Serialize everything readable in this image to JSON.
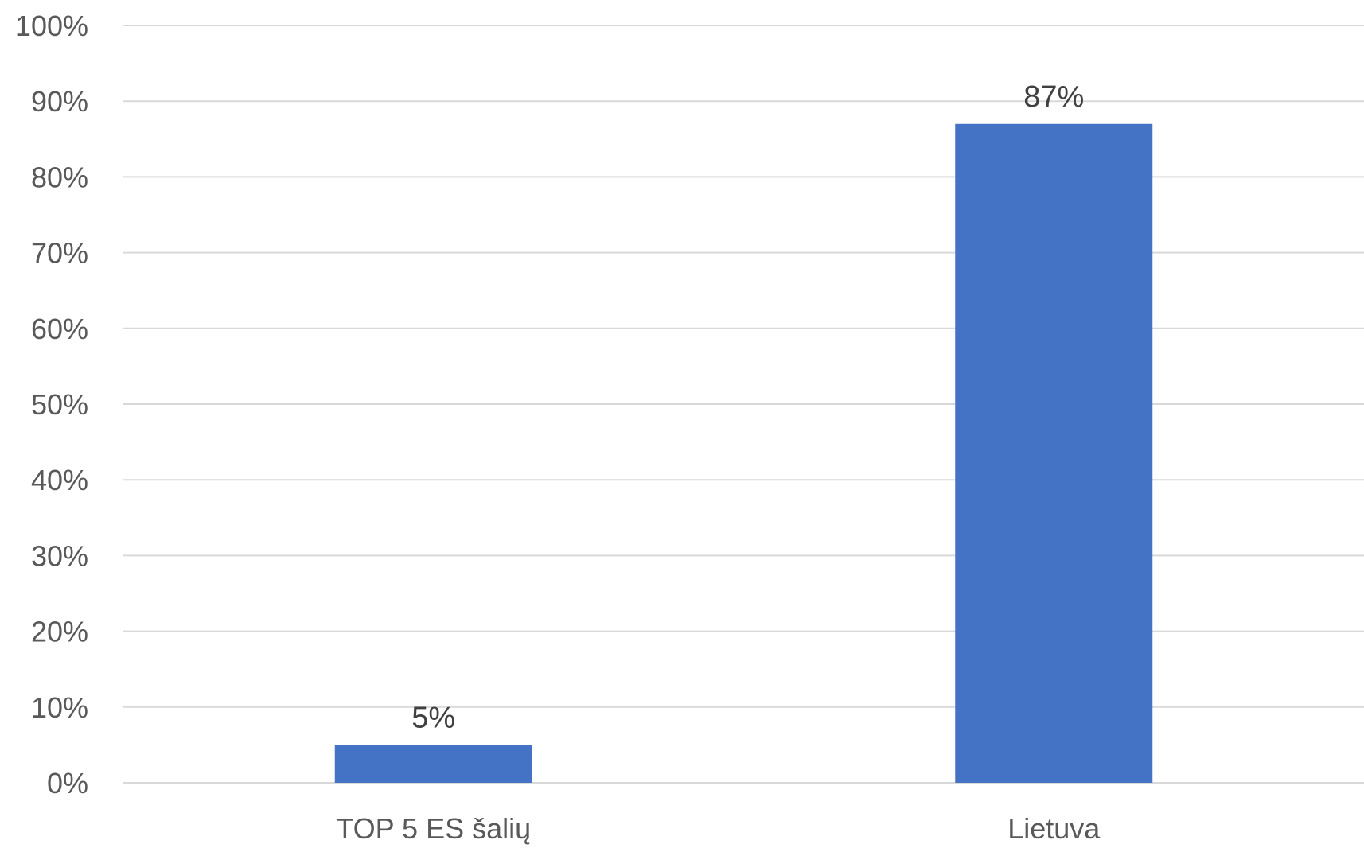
{
  "chart_data": {
    "type": "bar",
    "categories": [
      "TOP 5 ES šalių",
      "Lietuva"
    ],
    "values": [
      5,
      87
    ],
    "data_labels": [
      "5%",
      "87%"
    ],
    "ylim": [
      0,
      100
    ],
    "y_ticks": [
      0,
      10,
      20,
      30,
      40,
      50,
      60,
      70,
      80,
      90,
      100
    ],
    "y_tick_labels": [
      "0%",
      "10%",
      "20%",
      "30%",
      "40%",
      "50%",
      "60%",
      "70%",
      "80%",
      "90%",
      "100%"
    ],
    "grid": true,
    "legend": "none",
    "bar_color": "#4472c4",
    "title": "",
    "xlabel": "",
    "ylabel": ""
  }
}
